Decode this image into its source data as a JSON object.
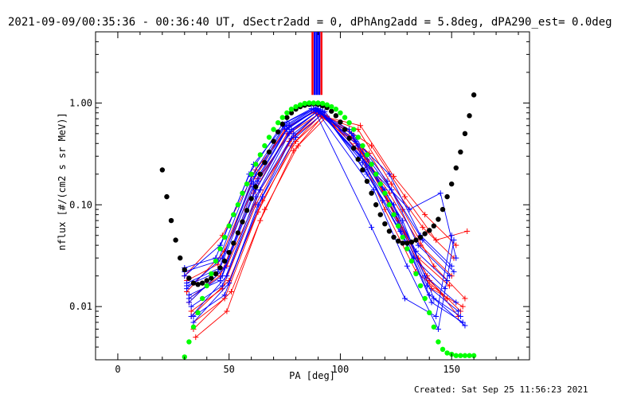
{
  "header": {
    "title": "2021-09-09/00:35:36 - 00:36:40 UT, dSectr2add = 0, dPhAng2add = 5.8deg, dPA290_est=  0.0deg"
  },
  "footer": {
    "created": "Created: Sat Sep 25 11:56:23 2021"
  },
  "colors": {
    "axes": "#000000",
    "series_red": "#ff0000",
    "series_blue": "#0000ff",
    "fit_black": "#000000",
    "fit_green": "#00ff00"
  },
  "chart_data": {
    "type": "line",
    "title": "2021-09-09/00:35:36 - 00:36:40 UT, dSectr2add = 0, dPhAng2add = 5.8deg, dPA290_est=  0.0deg",
    "xlabel": "PA [deg]",
    "ylabel": "nflux [#/(cm2 s sr MeV)]",
    "xlim": [
      -10,
      185
    ],
    "ylim": [
      0.003,
      5.0
    ],
    "yscale": "log",
    "grid": false,
    "legend": "none",
    "x_ticks": [
      0,
      50,
      100,
      150
    ],
    "x_tick_labels": [
      "0",
      "50",
      "100",
      "150"
    ],
    "y_ticks": [
      0.01,
      0.1,
      1.0
    ],
    "y_tick_labels": [
      "0.01",
      "0.10",
      "1.00"
    ],
    "vertical_bars": {
      "x": [
        87.5,
        88.5,
        89.5,
        90.5,
        91.5
      ],
      "colors": [
        "#ff0000",
        "#0000ff",
        "#0000ff",
        "#0000ff",
        "#ff0000"
      ],
      "y_from": 1.2,
      "y_to": 5.0
    },
    "series": [
      {
        "color": "#000000",
        "style": "thick-dots",
        "x": [
          20,
          22,
          24,
          26,
          28,
          30,
          32,
          34,
          36,
          38,
          40,
          42,
          44,
          46,
          48,
          50,
          52,
          54,
          56,
          58,
          60,
          62,
          64,
          66,
          68,
          70,
          72,
          74,
          76,
          78,
          80,
          82,
          84,
          86,
          88,
          90,
          92,
          94,
          96,
          98,
          100,
          102,
          104,
          106,
          108,
          110,
          112,
          114,
          116,
          118,
          120,
          122,
          124,
          126,
          128,
          130,
          132,
          134,
          136,
          138,
          140,
          142,
          144,
          146,
          148,
          150,
          152,
          154,
          156,
          158,
          160
        ],
        "y": [
          0.22,
          0.12,
          0.07,
          0.045,
          0.03,
          0.023,
          0.019,
          0.017,
          0.0165,
          0.017,
          0.018,
          0.019,
          0.021,
          0.024,
          0.028,
          0.034,
          0.042,
          0.053,
          0.068,
          0.088,
          0.115,
          0.15,
          0.2,
          0.26,
          0.33,
          0.42,
          0.52,
          0.62,
          0.72,
          0.8,
          0.87,
          0.92,
          0.95,
          0.97,
          0.98,
          0.97,
          0.94,
          0.9,
          0.83,
          0.75,
          0.65,
          0.55,
          0.45,
          0.36,
          0.28,
          0.22,
          0.17,
          0.13,
          0.1,
          0.08,
          0.065,
          0.055,
          0.048,
          0.044,
          0.042,
          0.042,
          0.043,
          0.045,
          0.048,
          0.052,
          0.056,
          0.062,
          0.072,
          0.09,
          0.12,
          0.16,
          0.23,
          0.33,
          0.5,
          0.75,
          1.2
        ]
      },
      {
        "color": "#00ff00",
        "style": "thick-dots",
        "x": [
          30,
          32,
          34,
          36,
          38,
          40,
          42,
          44,
          46,
          48,
          50,
          52,
          54,
          56,
          58,
          60,
          62,
          64,
          66,
          68,
          70,
          72,
          74,
          76,
          78,
          80,
          82,
          84,
          86,
          88,
          90,
          92,
          94,
          96,
          98,
          100,
          102,
          104,
          106,
          108,
          110,
          112,
          114,
          116,
          118,
          120,
          122,
          124,
          126,
          128,
          130,
          132,
          134,
          136,
          138,
          140,
          142,
          144,
          146,
          148,
          150,
          152,
          154,
          156,
          158,
          160
        ],
        "y": [
          0.0032,
          0.0045,
          0.0063,
          0.0087,
          0.012,
          0.016,
          0.021,
          0.028,
          0.037,
          0.048,
          0.062,
          0.08,
          0.1,
          0.13,
          0.16,
          0.2,
          0.25,
          0.31,
          0.38,
          0.46,
          0.55,
          0.64,
          0.72,
          0.8,
          0.87,
          0.92,
          0.96,
          0.99,
          1.0,
          1.0,
          1.0,
          0.99,
          0.96,
          0.92,
          0.87,
          0.8,
          0.72,
          0.64,
          0.55,
          0.46,
          0.38,
          0.31,
          0.25,
          0.2,
          0.16,
          0.13,
          0.1,
          0.08,
          0.062,
          0.048,
          0.037,
          0.028,
          0.021,
          0.016,
          0.012,
          0.0087,
          0.0063,
          0.0045,
          0.0038,
          0.0035,
          0.0034,
          0.0033,
          0.0033,
          0.0033,
          0.0033,
          0.0033
        ]
      },
      {
        "color": "#ff0000",
        "style": "line-plus",
        "x": [
          31,
          45,
          60,
          75,
          88,
          105,
          120,
          134,
          148
        ],
        "y": [
          0.018,
          0.026,
          0.16,
          0.55,
          0.82,
          0.5,
          0.09,
          0.022,
          0.012
        ]
      },
      {
        "color": "#ff0000",
        "style": "line-plus",
        "x": [
          32,
          46,
          61,
          76,
          89,
          106,
          121,
          135,
          149
        ],
        "y": [
          0.012,
          0.02,
          0.13,
          0.5,
          0.8,
          0.45,
          0.11,
          0.03,
          0.016
        ]
      },
      {
        "color": "#ff0000",
        "style": "line-plus",
        "x": [
          33,
          47,
          62,
          77,
          90,
          107,
          122,
          136,
          150
        ],
        "y": [
          0.009,
          0.015,
          0.1,
          0.42,
          0.78,
          0.4,
          0.13,
          0.04,
          0.02
        ]
      },
      {
        "color": "#ff0000",
        "style": "line-plus",
        "x": [
          34,
          48,
          63,
          78,
          91,
          108,
          123,
          137,
          151
        ],
        "y": [
          0.007,
          0.012,
          0.085,
          0.38,
          0.76,
          0.55,
          0.16,
          0.06,
          0.03
        ]
      },
      {
        "color": "#ff0000",
        "style": "line-plus",
        "x": [
          35,
          49,
          64,
          79,
          92,
          109,
          124,
          138,
          152
        ],
        "y": [
          0.005,
          0.009,
          0.07,
          0.34,
          0.74,
          0.6,
          0.19,
          0.08,
          0.04
        ]
      },
      {
        "color": "#ff0000",
        "style": "line-plus",
        "x": [
          30,
          47,
          62,
          77,
          90,
          110,
          125,
          139,
          153
        ],
        "y": [
          0.02,
          0.05,
          0.22,
          0.6,
          0.85,
          0.35,
          0.08,
          0.02,
          0.008
        ]
      },
      {
        "color": "#ff0000",
        "style": "line-plus",
        "x": [
          31,
          48,
          63,
          78,
          91,
          111,
          126,
          140,
          154
        ],
        "y": [
          0.014,
          0.035,
          0.18,
          0.52,
          0.8,
          0.3,
          0.07,
          0.018,
          0.009
        ]
      },
      {
        "color": "#ff0000",
        "style": "line-plus",
        "x": [
          32,
          49,
          64,
          79,
          92,
          112,
          127,
          141,
          155
        ],
        "y": [
          0.011,
          0.025,
          0.14,
          0.46,
          0.78,
          0.28,
          0.06,
          0.015,
          0.01
        ]
      },
      {
        "color": "#ff0000",
        "style": "line-plus",
        "x": [
          33,
          50,
          65,
          80,
          93,
          113,
          128,
          142,
          156
        ],
        "y": [
          0.008,
          0.018,
          0.11,
          0.42,
          0.76,
          0.32,
          0.09,
          0.025,
          0.012
        ]
      },
      {
        "color": "#ff0000",
        "style": "line-plus",
        "x": [
          34,
          51,
          66,
          81,
          94,
          114,
          129,
          143,
          157
        ],
        "y": [
          0.006,
          0.014,
          0.09,
          0.38,
          0.74,
          0.38,
          0.12,
          0.045,
          0.055
        ]
      },
      {
        "color": "#0000ff",
        "style": "line-plus",
        "x": [
          30,
          44,
          59,
          74,
          87,
          104,
          119,
          133,
          147
        ],
        "y": [
          0.024,
          0.03,
          0.2,
          0.62,
          0.88,
          0.55,
          0.11,
          0.03,
          0.015
        ]
      },
      {
        "color": "#0000ff",
        "style": "line-plus",
        "x": [
          31,
          45,
          60,
          75,
          88,
          105,
          120,
          134,
          148
        ],
        "y": [
          0.016,
          0.022,
          0.17,
          0.58,
          0.86,
          0.5,
          0.14,
          0.035,
          0.018
        ]
      },
      {
        "color": "#0000ff",
        "style": "line-plus",
        "x": [
          32,
          46,
          61,
          76,
          89,
          106,
          121,
          135,
          149
        ],
        "y": [
          0.013,
          0.018,
          0.15,
          0.55,
          0.85,
          0.48,
          0.17,
          0.04,
          0.02
        ]
      },
      {
        "color": "#0000ff",
        "style": "line-plus",
        "x": [
          33,
          47,
          62,
          77,
          90,
          107,
          122,
          136,
          150
        ],
        "y": [
          0.01,
          0.016,
          0.12,
          0.5,
          0.84,
          0.42,
          0.2,
          0.05,
          0.025
        ]
      },
      {
        "color": "#0000ff",
        "style": "line-plus",
        "x": [
          34,
          48,
          63,
          78,
          91,
          108,
          123,
          137,
          151
        ],
        "y": [
          0.008,
          0.013,
          0.1,
          0.45,
          0.82,
          0.38,
          0.14,
          0.045,
          0.022
        ]
      },
      {
        "color": "#0000ff",
        "style": "line-plus",
        "x": [
          30,
          46,
          61,
          76,
          89,
          109,
          124,
          138,
          152
        ],
        "y": [
          0.02,
          0.04,
          0.25,
          0.65,
          0.9,
          0.3,
          0.1,
          0.02,
          0.011
        ]
      },
      {
        "color": "#0000ff",
        "style": "line-plus",
        "x": [
          31,
          47,
          62,
          77,
          90,
          110,
          125,
          139,
          153
        ],
        "y": [
          0.015,
          0.03,
          0.2,
          0.6,
          0.88,
          0.26,
          0.08,
          0.016,
          0.009
        ]
      },
      {
        "color": "#0000ff",
        "style": "line-plus",
        "x": [
          32,
          48,
          63,
          78,
          91,
          111,
          126,
          140,
          154
        ],
        "y": [
          0.011,
          0.024,
          0.17,
          0.55,
          0.86,
          0.22,
          0.065,
          0.013,
          0.008
        ]
      },
      {
        "color": "#0000ff",
        "style": "line-plus",
        "x": [
          33,
          49,
          64,
          79,
          92,
          112,
          127,
          141,
          155
        ],
        "y": [
          0.008,
          0.02,
          0.14,
          0.5,
          0.84,
          0.2,
          0.055,
          0.011,
          0.007
        ]
      },
      {
        "color": "#0000ff",
        "style": "line-plus",
        "x": [
          34,
          50,
          65,
          80,
          93,
          113,
          128,
          142,
          156
        ],
        "y": [
          0.007,
          0.017,
          0.12,
          0.46,
          0.82,
          0.24,
          0.07,
          0.012,
          0.0065
        ]
      },
      {
        "color": "#0000ff",
        "style": "line-plus",
        "x": [
          30,
          45,
          60,
          75,
          88,
          114,
          129,
          143,
          150
        ],
        "y": [
          0.022,
          0.028,
          0.19,
          0.6,
          0.88,
          0.06,
          0.012,
          0.008,
          0.05
        ]
      },
      {
        "color": "#0000ff",
        "style": "line-plus",
        "x": [
          31,
          46,
          61,
          76,
          89,
          115,
          130,
          144,
          151
        ],
        "y": [
          0.017,
          0.024,
          0.16,
          0.56,
          0.86,
          0.14,
          0.025,
          0.006,
          0.045
        ]
      },
      {
        "color": "#0000ff",
        "style": "line-plus",
        "x": [
          32,
          47,
          62,
          77,
          90,
          116,
          131,
          145,
          152
        ],
        "y": [
          0.012,
          0.02,
          0.14,
          0.52,
          0.84,
          0.2,
          0.09,
          0.13,
          0.03
        ]
      }
    ]
  }
}
